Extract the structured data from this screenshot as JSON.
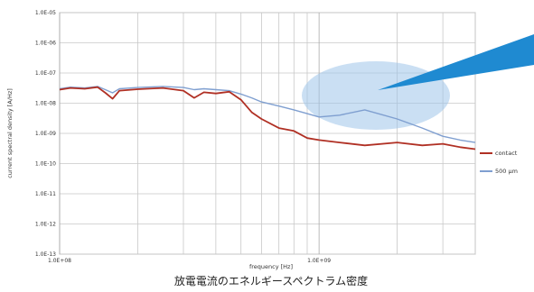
{
  "chart_data": {
    "type": "line",
    "title": "",
    "caption": "放電電流のエネルギースペクトラム密度",
    "xlabel": "frequency [Hz]",
    "ylabel": "current spectral density [A/Hz]",
    "x_scale": "log",
    "y_scale": "log",
    "xlim": [
      100000000,
      4000000000
    ],
    "ylim": [
      1e-13,
      1e-05
    ],
    "x_ticks": [
      {
        "value": 100000000,
        "label": "1.0E+08"
      },
      {
        "value": 1000000000,
        "label": "1.0E+09"
      }
    ],
    "y_ticks": [
      {
        "value": 1e-05,
        "label": "1.0E-05"
      },
      {
        "value": 1e-06,
        "label": "1.0E-06"
      },
      {
        "value": 1e-07,
        "label": "1.0E-07"
      },
      {
        "value": 1e-08,
        "label": "1.0E-08"
      },
      {
        "value": 1e-09,
        "label": "1.0E-09"
      },
      {
        "value": 1e-10,
        "label": "1.0E-10"
      },
      {
        "value": 1e-11,
        "label": "1.0E-11"
      },
      {
        "value": 1e-12,
        "label": "1.0E-12"
      },
      {
        "value": 1e-13,
        "label": "1.0E-13"
      }
    ],
    "grid": true,
    "legend_position": "right",
    "series": [
      {
        "name": "contact",
        "color": "#b03024",
        "x": [
          100000000,
          110000000,
          125000000,
          140000000,
          150000000,
          160000000,
          170000000,
          200000000,
          250000000,
          300000000,
          330000000,
          360000000,
          400000000,
          450000000,
          500000000,
          550000000,
          600000000,
          700000000,
          800000000,
          900000000,
          1000000000,
          1200000000,
          1500000000,
          2000000000,
          2500000000,
          3000000000,
          3500000000,
          4000000000
        ],
        "y": [
          2.8e-08,
          3.2e-08,
          3e-08,
          3.4e-08,
          2.2e-08,
          1.4e-08,
          2.6e-08,
          2.9e-08,
          3.2e-08,
          2.6e-08,
          1.5e-08,
          2.3e-08,
          2.1e-08,
          2.4e-08,
          1.3e-08,
          5e-09,
          3e-09,
          1.5e-09,
          1.2e-09,
          7e-10,
          6e-10,
          5e-10,
          4e-10,
          5e-10,
          4e-10,
          4.5e-10,
          3.5e-10,
          3e-10
        ]
      },
      {
        "name": "500 µm",
        "color": "#7f9fd0",
        "x": [
          100000000,
          110000000,
          125000000,
          140000000,
          150000000,
          160000000,
          170000000,
          200000000,
          250000000,
          300000000,
          330000000,
          360000000,
          400000000,
          450000000,
          500000000,
          550000000,
          600000000,
          700000000,
          800000000,
          900000000,
          1000000000,
          1200000000,
          1500000000,
          2000000000,
          2500000000,
          3000000000,
          3500000000,
          4000000000
        ],
        "y": [
          3e-08,
          3.4e-08,
          3.2e-08,
          3.6e-08,
          2.8e-08,
          2.2e-08,
          3e-08,
          3.3e-08,
          3.6e-08,
          3.3e-08,
          2.8e-08,
          3e-08,
          2.8e-08,
          2.6e-08,
          2e-08,
          1.5e-08,
          1.1e-08,
          8e-09,
          6e-09,
          4.5e-09,
          3.5e-09,
          4e-09,
          6e-09,
          3e-09,
          1.5e-09,
          8e-10,
          6e-10,
          5e-10
        ]
      }
    ]
  }
}
